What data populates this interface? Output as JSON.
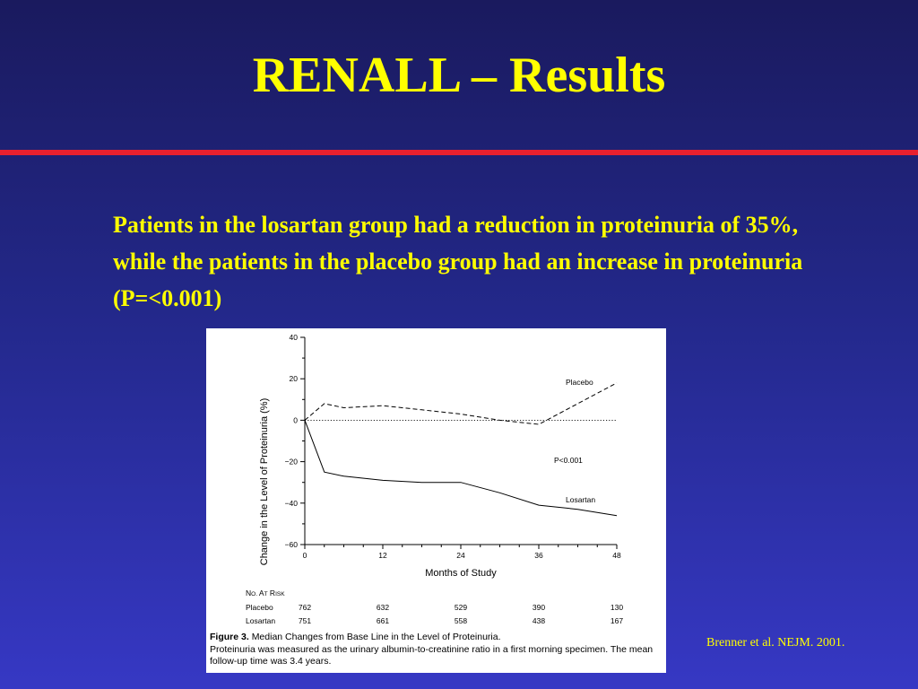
{
  "slide": {
    "title": "RENALL – Results",
    "body": "Patients in the losartan group had a reduction in proteinuria of 35%, while the patients in the placebo group had an increase in proteinuria (P=<0.001)",
    "citation": "Brenner et al. NEJM. 2001."
  },
  "colors": {
    "title": "#ffff00",
    "rule": "#e8202e",
    "background_top": "#1a1a5e",
    "background_bottom": "#3638c4"
  },
  "chart_data": {
    "type": "line",
    "xlabel": "Months of Study",
    "ylabel": "Change in the Level of Proteinuria (%)",
    "xlim": [
      0,
      48
    ],
    "ylim": [
      -60,
      40
    ],
    "xticks": [
      0,
      12,
      24,
      36,
      48
    ],
    "yticks": [
      40,
      20,
      0,
      -20,
      -40,
      -60
    ],
    "ytick_labels": [
      "40",
      "20",
      "0",
      "−20",
      "−40",
      "−60"
    ],
    "series": [
      {
        "name": "Placebo",
        "style": "dashed",
        "x": [
          0,
          3,
          6,
          12,
          18,
          24,
          30,
          36,
          42,
          48
        ],
        "y": [
          0,
          8,
          6,
          7,
          5,
          3,
          0,
          -2,
          8,
          18
        ]
      },
      {
        "name": "Losartan",
        "style": "solid",
        "x": [
          0,
          3,
          6,
          12,
          18,
          24,
          30,
          36,
          42,
          48
        ],
        "y": [
          0,
          -25,
          -27,
          -29,
          -30,
          -30,
          -35,
          -41,
          -43,
          -46
        ]
      }
    ],
    "reference_line": {
      "y": 0,
      "style": "dotted"
    },
    "annotation": "P<0.001",
    "risk_table": {
      "header": "No. at Risk",
      "rows": [
        {
          "label": "Placebo",
          "values": [
            "762",
            "632",
            "529",
            "390",
            "130"
          ]
        },
        {
          "label": "Losartan",
          "values": [
            "751",
            "661",
            "558",
            "438",
            "167"
          ]
        }
      ]
    },
    "caption": {
      "label": "Figure 3.",
      "title": "Median Changes from Base Line in the Level of Proteinuria.",
      "text": "Proteinuria was measured as the urinary albumin-to-creatinine ratio in a first morning specimen. The mean follow-up time was 3.4 years."
    }
  }
}
